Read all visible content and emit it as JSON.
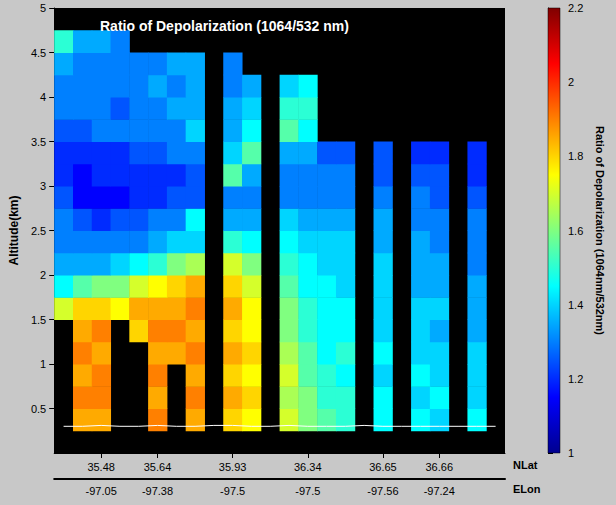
{
  "chart_data": {
    "type": "heatmap",
    "title": "Ratio of Depolarization (1064/532 nm)",
    "ylabel": "Altitude(km)",
    "ylim": [
      0,
      5
    ],
    "yticks": [
      0.5,
      1,
      1.5,
      2,
      2.5,
      3,
      3.5,
      4,
      4.5,
      5
    ],
    "xlabel": "NLat",
    "categories": [
      null,
      null,
      "35.48",
      null,
      null,
      "35.64",
      null,
      null,
      null,
      "35.93",
      null,
      null,
      null,
      "36.34",
      null,
      null,
      null,
      "36.65",
      null,
      null,
      "36.66",
      null,
      null,
      null
    ],
    "x2label": "ELon",
    "x2_categories": [
      null,
      null,
      "-97.05",
      null,
      null,
      "-97.38",
      null,
      null,
      null,
      "-97.5",
      null,
      null,
      null,
      "-97.5",
      null,
      null,
      null,
      "-97.56",
      null,
      null,
      "-97.24",
      null,
      null,
      null
    ],
    "y_edges": [
      0.25,
      0.5,
      0.75,
      1,
      1.25,
      1.5,
      1.75,
      2,
      2.25,
      2.5,
      2.75,
      3,
      3.25,
      3.5,
      3.75,
      4,
      4.25,
      4.5,
      4.75
    ],
    "cells": [
      [
        null,
        1.85,
        1.85,
        null,
        null,
        1.9,
        null,
        1.85,
        null,
        1.8,
        1.75,
        null,
        1.7,
        1.6,
        1.55,
        1.5,
        null,
        1.45,
        null,
        1.45,
        1.4,
        null,
        1.45,
        null
      ],
      [
        null,
        1.9,
        1.9,
        null,
        null,
        1.85,
        null,
        1.9,
        null,
        1.85,
        1.8,
        null,
        1.65,
        1.6,
        1.5,
        1.5,
        null,
        1.45,
        null,
        1.4,
        1.45,
        null,
        1.4,
        null
      ],
      [
        null,
        1.85,
        1.9,
        null,
        null,
        1.9,
        null,
        1.85,
        null,
        1.8,
        1.75,
        null,
        1.7,
        1.55,
        1.5,
        1.45,
        null,
        1.4,
        null,
        1.45,
        1.4,
        null,
        1.4,
        null
      ],
      [
        null,
        1.9,
        1.85,
        null,
        null,
        1.85,
        1.85,
        1.9,
        null,
        1.85,
        1.8,
        null,
        1.65,
        1.55,
        1.45,
        1.5,
        null,
        1.45,
        null,
        1.4,
        1.4,
        null,
        1.4,
        null
      ],
      [
        null,
        1.85,
        1.9,
        null,
        1.8,
        1.9,
        1.9,
        1.85,
        null,
        1.8,
        1.75,
        null,
        1.6,
        1.5,
        1.45,
        1.45,
        null,
        1.4,
        null,
        1.4,
        1.35,
        null,
        1.35,
        null
      ],
      [
        1.7,
        1.8,
        1.8,
        1.75,
        1.85,
        1.85,
        1.85,
        1.9,
        null,
        1.85,
        1.75,
        null,
        1.6,
        1.5,
        1.45,
        1.45,
        null,
        1.4,
        null,
        1.4,
        1.4,
        null,
        1.35,
        null
      ],
      [
        1.45,
        1.55,
        1.6,
        1.6,
        1.7,
        1.75,
        1.8,
        1.85,
        null,
        1.8,
        1.7,
        null,
        1.55,
        1.45,
        1.45,
        1.4,
        null,
        1.4,
        null,
        1.35,
        1.35,
        null,
        1.35,
        null
      ],
      [
        1.35,
        1.35,
        1.35,
        1.4,
        1.45,
        1.5,
        1.6,
        1.65,
        null,
        1.7,
        1.6,
        null,
        1.5,
        1.45,
        1.4,
        1.4,
        null,
        1.4,
        null,
        1.35,
        1.35,
        null,
        1.3,
        null
      ],
      [
        1.3,
        1.3,
        1.3,
        1.3,
        1.3,
        1.35,
        1.4,
        1.4,
        null,
        1.5,
        1.45,
        null,
        1.45,
        1.4,
        1.4,
        1.4,
        null,
        1.35,
        null,
        1.35,
        1.3,
        null,
        1.3,
        null
      ],
      [
        1.3,
        1.25,
        1.2,
        1.25,
        1.25,
        1.3,
        1.3,
        1.45,
        null,
        1.35,
        1.35,
        null,
        1.4,
        1.35,
        1.35,
        1.35,
        null,
        1.35,
        null,
        1.3,
        1.3,
        null,
        1.3,
        null
      ],
      [
        1.25,
        1.15,
        1.15,
        1.15,
        1.2,
        1.2,
        1.25,
        1.25,
        null,
        1.3,
        1.3,
        null,
        1.3,
        1.3,
        1.3,
        1.3,
        null,
        1.3,
        null,
        1.3,
        1.25,
        null,
        1.25,
        null
      ],
      [
        1.2,
        1.15,
        1.2,
        1.2,
        1.2,
        1.2,
        1.2,
        1.25,
        null,
        1.55,
        1.35,
        null,
        1.3,
        1.3,
        1.3,
        1.3,
        null,
        1.25,
        null,
        1.25,
        1.25,
        null,
        1.2,
        null
      ],
      [
        1.2,
        1.2,
        1.2,
        1.2,
        1.25,
        1.25,
        1.3,
        1.3,
        null,
        1.4,
        1.55,
        null,
        1.35,
        1.35,
        1.25,
        1.25,
        null,
        1.25,
        null,
        1.2,
        1.2,
        null,
        1.2,
        null
      ],
      [
        1.25,
        1.25,
        1.3,
        1.3,
        1.3,
        1.3,
        1.3,
        1.4,
        null,
        1.35,
        1.45,
        null,
        1.55,
        1.45,
        null,
        null,
        null,
        null,
        null,
        null,
        null,
        null,
        null,
        null
      ],
      [
        1.3,
        1.3,
        1.3,
        1.25,
        1.3,
        1.3,
        1.35,
        1.35,
        null,
        1.35,
        1.4,
        null,
        1.5,
        1.5,
        null,
        null,
        null,
        null,
        null,
        null,
        null,
        null,
        null,
        null
      ],
      [
        1.3,
        1.3,
        1.3,
        1.3,
        1.3,
        1.35,
        1.3,
        1.35,
        null,
        1.3,
        1.35,
        null,
        1.4,
        1.45,
        null,
        null,
        null,
        null,
        null,
        null,
        null,
        null,
        null,
        null
      ],
      [
        1.35,
        1.3,
        1.3,
        1.3,
        1.3,
        1.3,
        1.35,
        1.35,
        null,
        1.3,
        null,
        null,
        null,
        null,
        null,
        null,
        null,
        null,
        null,
        null,
        null,
        null,
        null,
        null
      ],
      [
        1.5,
        1.35,
        1.35,
        1.3,
        null,
        null,
        null,
        null,
        null,
        null,
        null,
        null,
        null,
        null,
        null,
        null,
        null,
        null,
        null,
        null,
        null,
        null,
        null,
        null
      ]
    ],
    "surface_altitude": [
      0.3,
      0.3,
      0.31,
      0.3,
      0.3,
      0.31,
      0.3,
      0.3,
      0.31,
      0.31,
      0.3,
      0.3,
      0.31,
      0.3,
      0.3,
      0.3,
      0.31,
      0.3,
      0.3,
      0.3,
      0.3,
      0.3,
      0.3,
      0.3
    ],
    "colorbar": {
      "label": "Ratio of Depolarization (1064nm/532nm)",
      "range": [
        1,
        2.2
      ],
      "ticks": [
        1,
        1.2,
        1.4,
        1.6,
        1.8,
        2,
        2.2
      ]
    }
  }
}
